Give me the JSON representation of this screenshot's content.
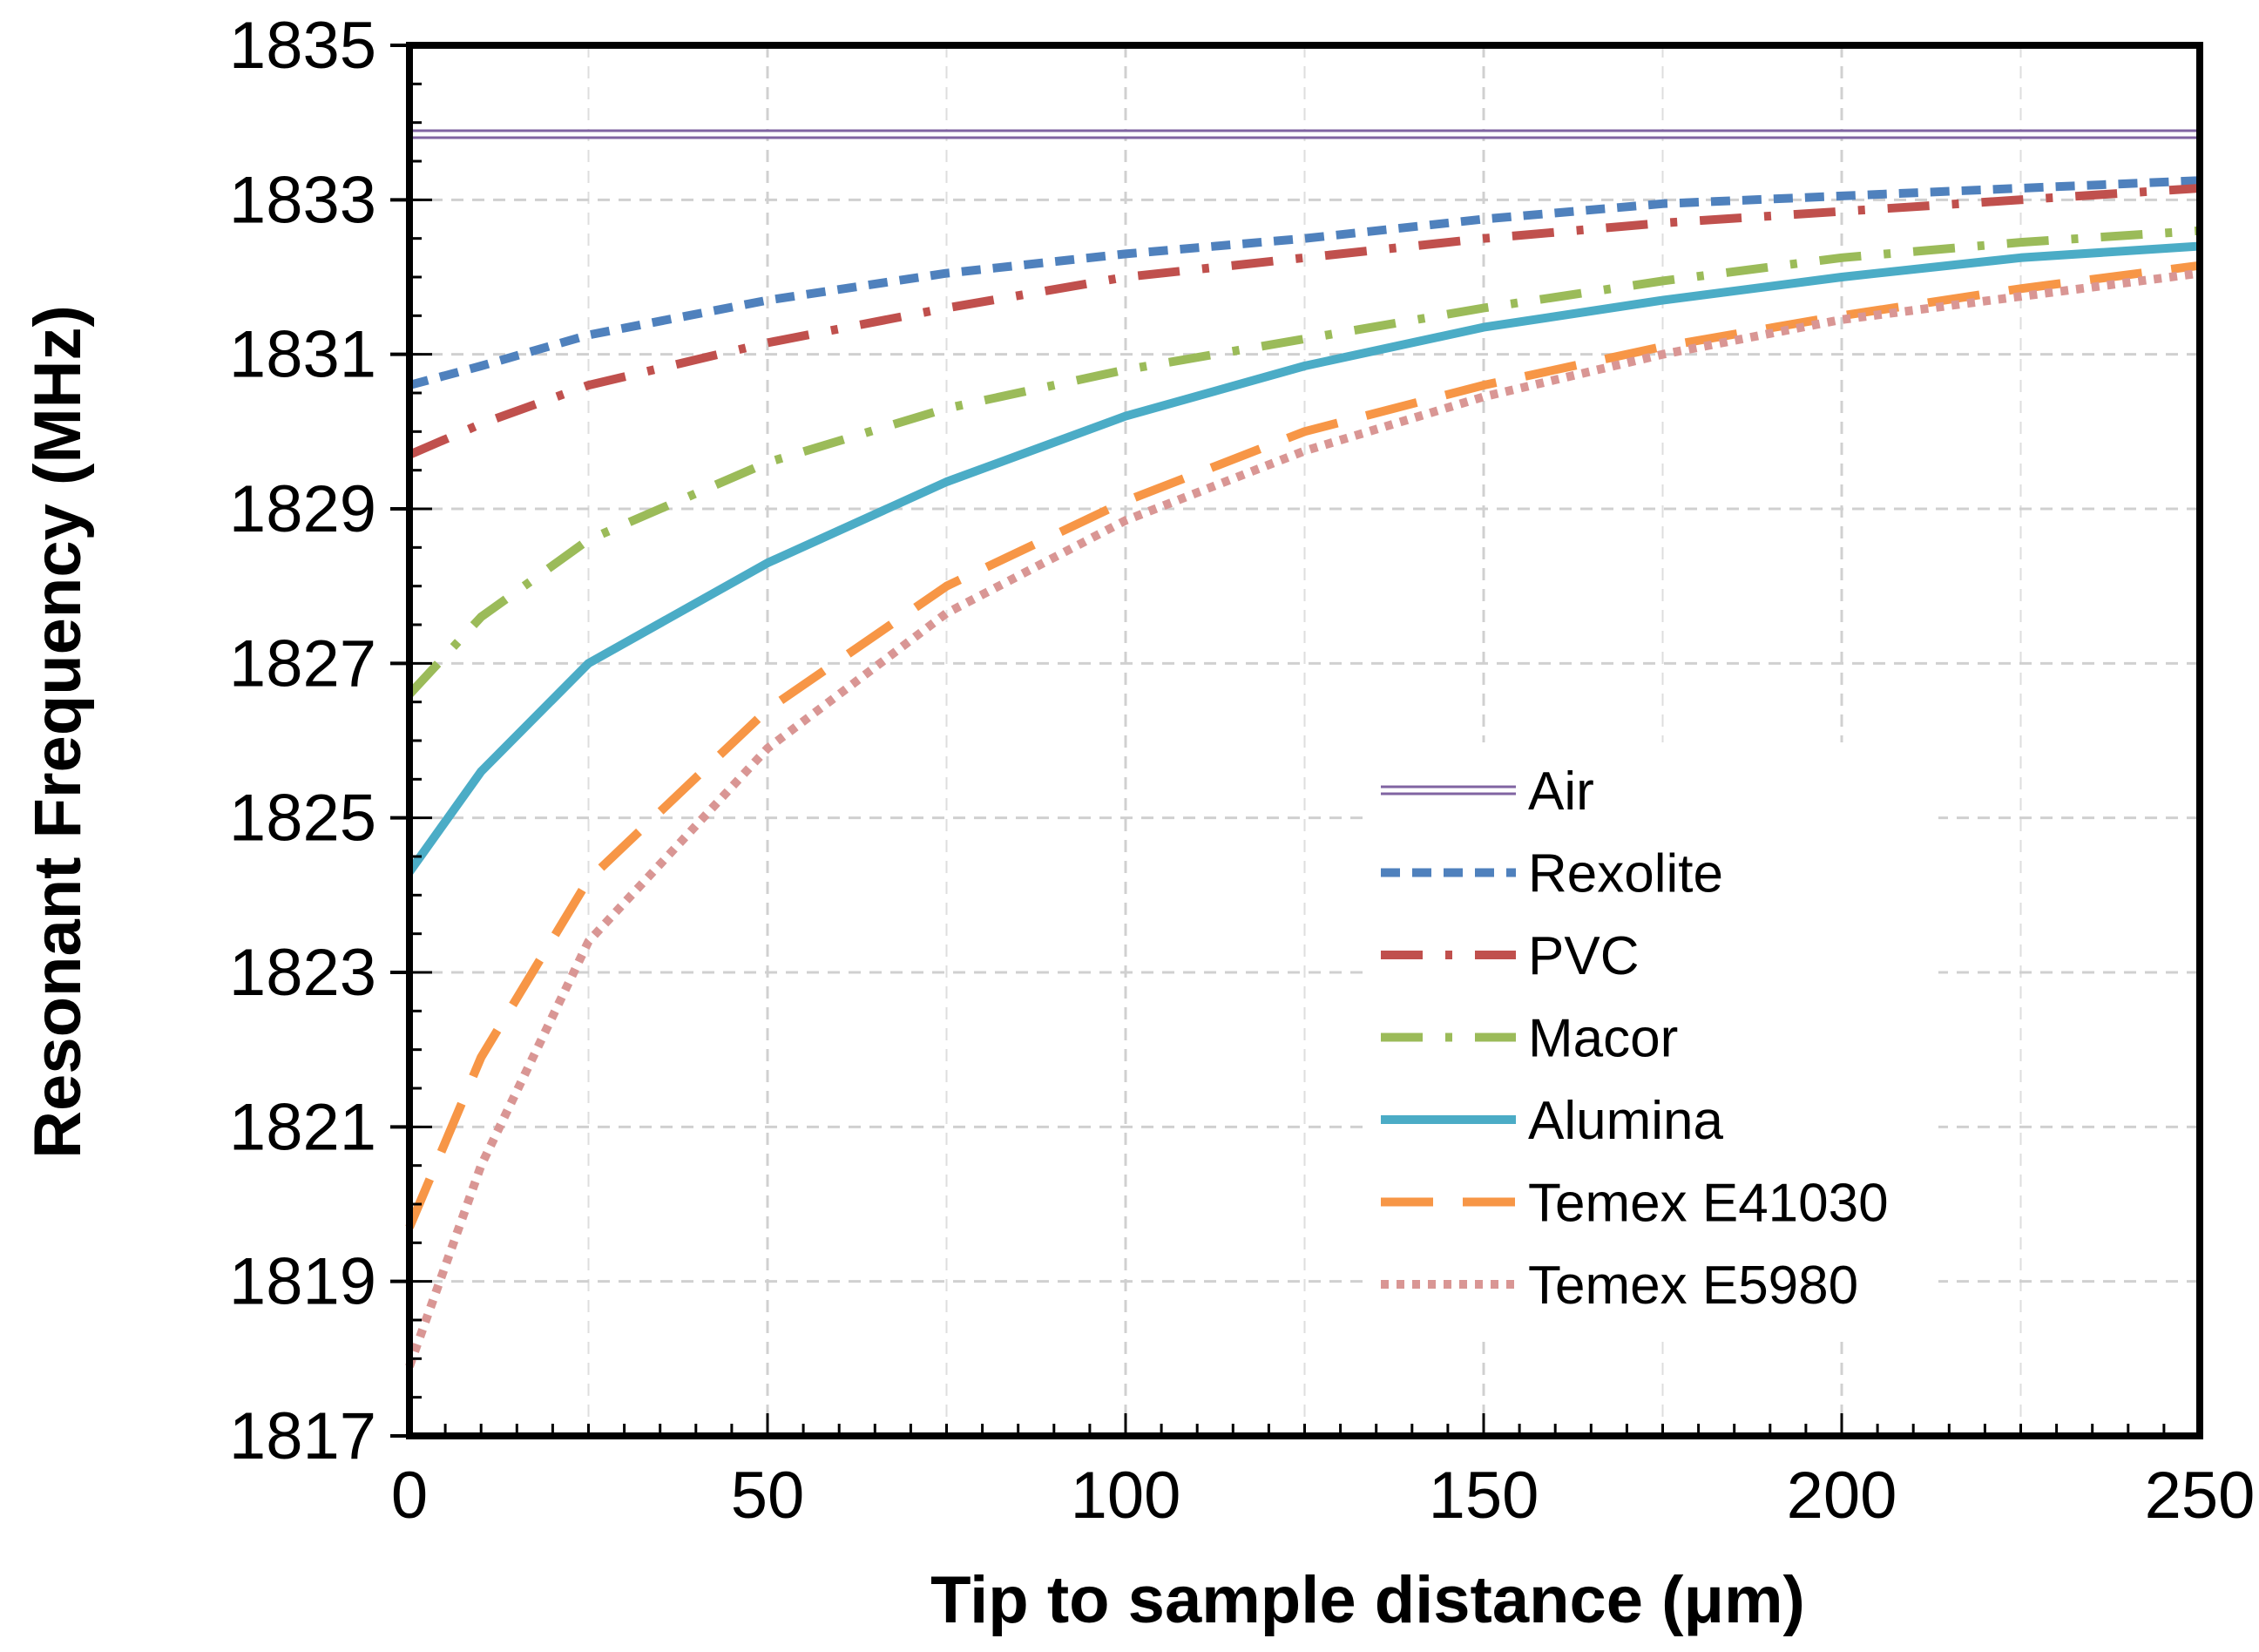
{
  "chart_data": {
    "type": "line",
    "title": "",
    "xlabel": "Tip to sample distance (μm)",
    "ylabel": "Resonant Frequency (MHz)",
    "xlim": [
      0,
      250
    ],
    "ylim": [
      1817,
      1835
    ],
    "xticks": [
      0,
      50,
      100,
      150,
      200,
      250
    ],
    "xtick_labels": [
      "0",
      "50",
      "100",
      "150",
      "200",
      "250"
    ],
    "yticks": [
      1817,
      1819,
      1821,
      1823,
      1825,
      1827,
      1829,
      1831,
      1833,
      1835
    ],
    "ytick_labels": [
      "1817",
      "1819",
      "1821",
      "1823",
      "1825",
      "1827",
      "1829",
      "1831",
      "1833",
      "1835"
    ],
    "grid": true,
    "legend_position": "lower-right",
    "x": [
      0,
      10,
      25,
      50,
      75,
      100,
      125,
      150,
      175,
      200,
      225,
      250
    ],
    "series": [
      {
        "name": "Air",
        "color": "#8064a2",
        "style": "double",
        "values": [
          1833.85,
          1833.85,
          1833.85,
          1833.85,
          1833.85,
          1833.85,
          1833.85,
          1833.85,
          1833.85,
          1833.85,
          1833.85,
          1833.85
        ]
      },
      {
        "name": "Rexolite",
        "color": "#4f81bd",
        "style": "dash",
        "values": [
          1830.6,
          1830.85,
          1831.25,
          1831.7,
          1832.05,
          1832.3,
          1832.5,
          1832.75,
          1832.95,
          1833.05,
          1833.15,
          1833.25
        ]
      },
      {
        "name": "PVC",
        "color": "#c0504d",
        "style": "dashdot",
        "values": [
          1829.7,
          1830.1,
          1830.6,
          1831.15,
          1831.6,
          1832.0,
          1832.25,
          1832.5,
          1832.7,
          1832.85,
          1833.0,
          1833.15
        ]
      },
      {
        "name": "Macor",
        "color": "#9bbb59",
        "style": "dashdot",
        "values": [
          1826.6,
          1827.6,
          1828.6,
          1829.6,
          1830.3,
          1830.8,
          1831.2,
          1831.6,
          1831.95,
          1832.25,
          1832.45,
          1832.6
        ]
      },
      {
        "name": "Alumina",
        "color": "#4bacc6",
        "style": "solid",
        "values": [
          1824.3,
          1825.6,
          1827.0,
          1828.3,
          1829.35,
          1830.2,
          1830.85,
          1831.35,
          1831.7,
          1832.0,
          1832.25,
          1832.4
        ]
      },
      {
        "name": "Temex E41030",
        "color": "#f79646",
        "style": "longdash",
        "values": [
          1819.7,
          1821.9,
          1824.2,
          1826.4,
          1828.0,
          1829.1,
          1830.0,
          1830.6,
          1831.1,
          1831.5,
          1831.85,
          1832.15
        ]
      },
      {
        "name": "Temex E5980",
        "color": "#d99694",
        "style": "dot",
        "values": [
          1817.9,
          1820.5,
          1823.4,
          1825.9,
          1827.65,
          1828.85,
          1829.75,
          1830.45,
          1831.0,
          1831.45,
          1831.75,
          1832.05
        ]
      }
    ]
  }
}
